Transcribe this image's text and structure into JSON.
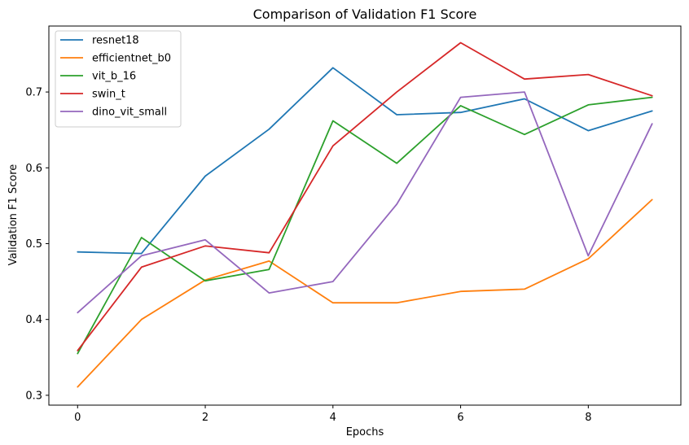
{
  "chart_data": {
    "type": "line",
    "title": "Comparison of Validation F1 Score",
    "xlabel": "Epochs",
    "ylabel": "Validation F1 Score",
    "x": [
      0,
      1,
      2,
      3,
      4,
      5,
      6,
      7,
      8,
      9
    ],
    "xlim": [
      -0.45,
      9.45
    ],
    "ylim": [
      0.287,
      0.787
    ],
    "xticks": [
      0,
      2,
      4,
      6,
      8
    ],
    "yticks": [
      0.3,
      0.4,
      0.5,
      0.6,
      0.7
    ],
    "xtick_labels": [
      "0",
      "2",
      "4",
      "6",
      "8"
    ],
    "ytick_labels": [
      "0.3",
      "0.4",
      "0.5",
      "0.6",
      "0.7"
    ],
    "grid": false,
    "legend_position": "top-left",
    "series": [
      {
        "name": "resnet18",
        "color": "#1f77b4",
        "values": [
          0.489,
          0.487,
          0.589,
          0.651,
          0.732,
          0.67,
          0.673,
          0.691,
          0.649,
          0.675
        ]
      },
      {
        "name": "efficientnet_b0",
        "color": "#ff7f0e",
        "values": [
          0.311,
          0.4,
          0.452,
          0.477,
          0.422,
          0.422,
          0.437,
          0.44,
          0.48,
          0.558
        ]
      },
      {
        "name": "vit_b_16",
        "color": "#2ca02c",
        "values": [
          0.355,
          0.508,
          0.451,
          0.466,
          0.662,
          0.606,
          0.682,
          0.644,
          0.683,
          0.693
        ]
      },
      {
        "name": "swin_t",
        "color": "#d62728",
        "values": [
          0.359,
          0.469,
          0.497,
          0.488,
          0.629,
          0.7,
          0.765,
          0.717,
          0.723,
          0.695
        ]
      },
      {
        "name": "dino_vit_small",
        "color": "#9467bd",
        "values": [
          0.409,
          0.484,
          0.505,
          0.435,
          0.45,
          0.552,
          0.693,
          0.7,
          0.484,
          0.658
        ]
      }
    ]
  }
}
